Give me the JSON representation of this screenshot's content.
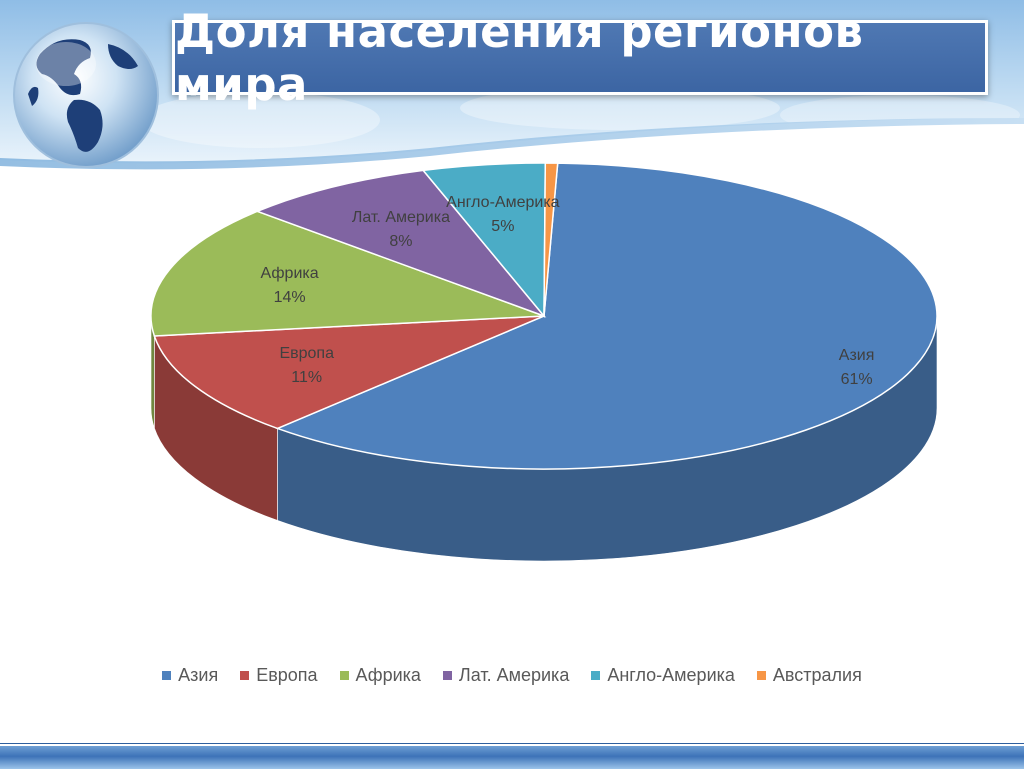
{
  "slide": {
    "title": "Доля населения регионов мира"
  },
  "chart_data": {
    "type": "pie",
    "title": "",
    "categories": [
      "Азия",
      "Европа",
      "Африка",
      "Лат. Америка",
      "Англо-Америка",
      "Австралия"
    ],
    "values": [
      61,
      11,
      14,
      8,
      5,
      0.5
    ],
    "data_labels": [
      "61%",
      "11%",
      "14%",
      "8%",
      "5%",
      ""
    ],
    "colors": [
      "#4f81bd",
      "#c0504d",
      "#9bbb59",
      "#8064a2",
      "#4bacc6",
      "#f79646"
    ],
    "legend_placement": "bottom",
    "style": "3d"
  },
  "legend": {
    "items": [
      {
        "label": "Азия",
        "color": "#4f81bd"
      },
      {
        "label": "Европа",
        "color": "#c0504d"
      },
      {
        "label": "Африка",
        "color": "#9bbb59"
      },
      {
        "label": "Лат. Америка",
        "color": "#8064a2"
      },
      {
        "label": "Англо-Америка",
        "color": "#4bacc6"
      },
      {
        "label": "Австралия",
        "color": "#f79646"
      }
    ]
  }
}
